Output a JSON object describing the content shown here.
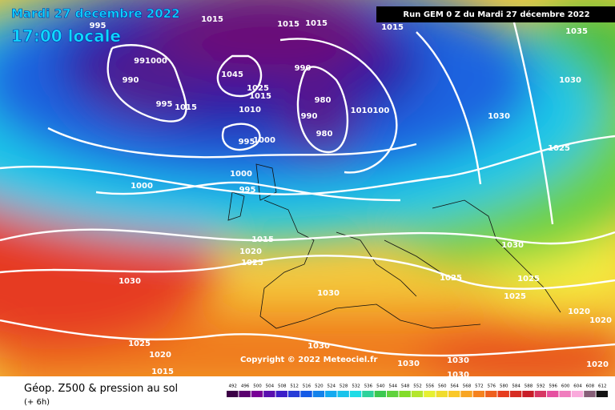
{
  "header": {
    "date": "Mardi 27 decembre 2022",
    "time": "17:00 locale",
    "run": "Run GEM 0 Z du Mardi 27 décembre 2022"
  },
  "copyright": "Copyright © 2022 Meteociel.fr",
  "footer": {
    "title": "Géop. Z500 & pression au sol",
    "lead": "(+ 6h)"
  },
  "isobar_labels": [
    "995",
    "1015",
    "1015",
    "1015",
    "1015",
    "1035",
    "991000",
    "990",
    "1045",
    "990",
    "1025",
    "1015",
    "995",
    "1015",
    "1010",
    "980",
    "990",
    "980",
    "1010100",
    "1030",
    "1030",
    "995",
    "1000",
    "1025",
    "1000",
    "1000",
    "995",
    "1015",
    "1020",
    "1025",
    "1030",
    "1030",
    "1025",
    "1025",
    "1025",
    "1030",
    "1020",
    "1020",
    "1025",
    "1030",
    "1020",
    "1030",
    "1030",
    "1030",
    "1015",
    "1020"
  ],
  "legend": {
    "ticks": [
      492,
      496,
      500,
      504,
      508,
      512,
      516,
      520,
      524,
      528,
      532,
      536,
      540,
      544,
      548,
      552,
      556,
      560,
      564,
      568,
      572,
      576,
      580,
      584,
      588,
      592,
      596,
      600,
      604,
      608,
      612
    ]
  }
}
